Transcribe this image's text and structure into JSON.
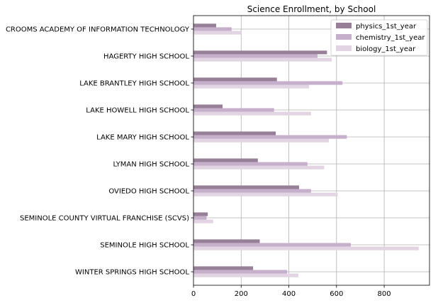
{
  "chart_data": {
    "type": "bar",
    "orientation": "horizontal",
    "title": "Science Enrollment, by School",
    "xlabel": "",
    "ylabel": "",
    "xlim": [
      0,
      990
    ],
    "x_ticks": [
      0,
      200,
      400,
      600,
      800
    ],
    "grid": true,
    "legend_position": "top-right",
    "categories": [
      "CROOMS ACADEMY OF INFORMATION TECHNOLOGY",
      "HAGERTY HIGH SCHOOL",
      "LAKE BRANTLEY HIGH SCHOOL",
      "LAKE HOWELL HIGH SCHOOL",
      "LAKE MARY HIGH SCHOOL",
      "LYMAN HIGH SCHOOL",
      "OVIEDO HIGH SCHOOL",
      "SEMINOLE COUNTY VIRTUAL FRANCHISE (SCVS)",
      "SEMINOLE HIGH SCHOOL",
      "WINTER SPRINGS HIGH SCHOOL"
    ],
    "series": [
      {
        "name": "physics_1st_year",
        "color": "#977f98",
        "values": [
          95,
          560,
          350,
          122,
          345,
          270,
          443,
          60,
          278,
          250
        ]
      },
      {
        "name": "chemistry_1st_year",
        "color": "#c5afca",
        "values": [
          160,
          520,
          625,
          338,
          643,
          478,
          493,
          55,
          660,
          393
        ]
      },
      {
        "name": "biology_1st_year",
        "color": "#e2d4e2",
        "values": [
          200,
          580,
          485,
          493,
          568,
          548,
          605,
          82,
          945,
          440
        ]
      }
    ]
  }
}
